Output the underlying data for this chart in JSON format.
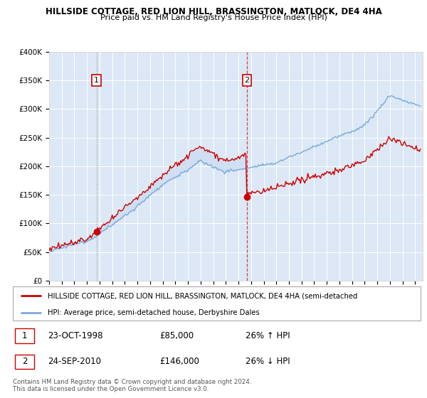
{
  "title": "HILLSIDE COTTAGE, RED LION HILL, BRASSINGTON, MATLOCK, DE4 4HA",
  "subtitle": "Price paid vs. HM Land Registry's House Price Index (HPI)",
  "bg_color": "#dce8f5",
  "red_line_color": "#cc0000",
  "blue_line_color": "#7aaadd",
  "purchase1_year": 1998,
  "purchase1_month": 10,
  "purchase1_price": 85000,
  "purchase2_year": 2010,
  "purchase2_month": 9,
  "purchase2_price": 146000,
  "ylim_min": 0,
  "ylim_max": 400000,
  "yticks": [
    0,
    50000,
    100000,
    150000,
    200000,
    250000,
    300000,
    350000,
    400000
  ],
  "legend_line1": "HILLSIDE COTTAGE, RED LION HILL, BRASSINGTON, MATLOCK, DE4 4HA (semi-detached",
  "legend_line2": "HPI: Average price, semi-detached house, Derbyshire Dales",
  "footer1": "Contains HM Land Registry data © Crown copyright and database right 2024.",
  "footer2": "This data is licensed under the Open Government Licence v3.0.",
  "table_row1_num": "1",
  "table_row1_date": "23-OCT-1998",
  "table_row1_price": "£85,000",
  "table_row1_hpi": "26% ↑ HPI",
  "table_row2_num": "2",
  "table_row2_date": "24-SEP-2010",
  "table_row2_price": "£146,000",
  "table_row2_hpi": "26% ↓ HPI"
}
